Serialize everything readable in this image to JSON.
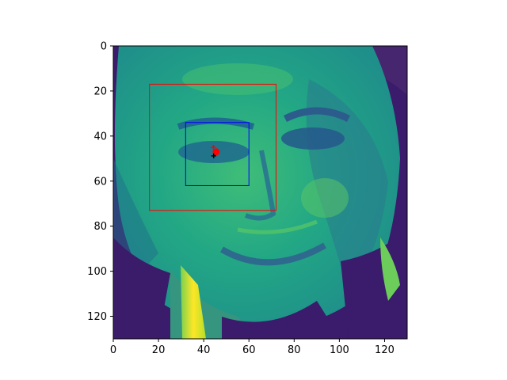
{
  "figure": {
    "image_extent": [
      0,
      130
    ],
    "x_ticks": [
      "0",
      "20",
      "40",
      "60",
      "80",
      "100",
      "120"
    ],
    "y_ticks": [
      "0",
      "20",
      "40",
      "60",
      "80",
      "100",
      "120"
    ],
    "colormap": "viridis",
    "background": "#ffffff"
  },
  "boxes": [
    {
      "name": "outer-box",
      "color": "#ff0000",
      "x0": 16,
      "y0": 17,
      "x1": 72,
      "y1": 73
    },
    {
      "name": "inner-box",
      "color": "#0000ff",
      "x0": 32,
      "y0": 34,
      "x1": 60,
      "y1": 62
    }
  ],
  "markers": [
    {
      "name": "keypoint-center",
      "color": "#ff0000",
      "x": 45.5,
      "y": 47,
      "shape": "dot"
    },
    {
      "name": "keypoint-secondary",
      "color": "#ff0000",
      "x": 44.3,
      "y": 45,
      "shape": "plus"
    },
    {
      "name": "keypoint-dark",
      "color": "#000000",
      "x": 44.4,
      "y": 48.8,
      "shape": "plus"
    }
  ]
}
